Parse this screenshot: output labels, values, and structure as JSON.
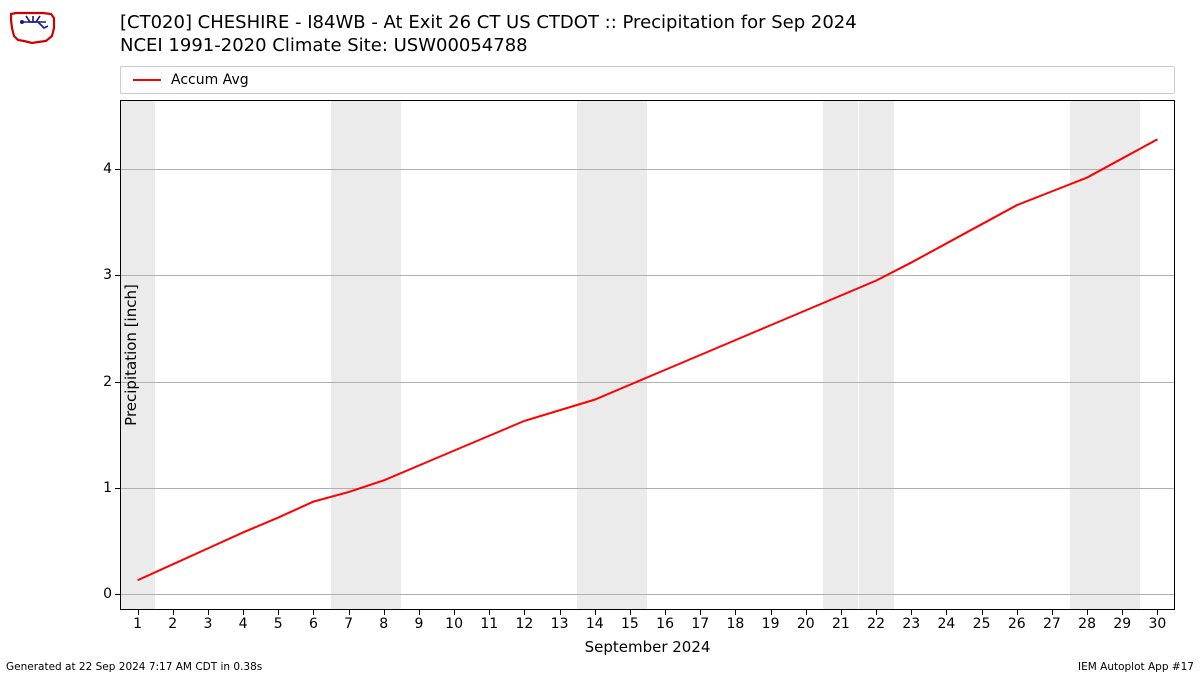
{
  "logo": {
    "name": "iem-iowa-logo",
    "stroke_primary": "#cc0000",
    "stroke_secondary": "#1a1a8a",
    "fill": "#ffffff"
  },
  "title": {
    "line1": "[CT020] CHESHIRE - I84WB - At Exit 26    CT US  CTDOT :: Precipitation for Sep 2024",
    "line2": "NCEI 1991-2020 Climate Site: USW00054788",
    "fontsize": 18,
    "color": "#000000"
  },
  "chart": {
    "type": "line",
    "background_color": "#ffffff",
    "weekend_band_color": "#ebebeb",
    "grid_color": "#b0b0b0",
    "border_color": "#000000",
    "x": {
      "label": "September 2024",
      "label_fontsize": 15,
      "ticks": [
        1,
        2,
        3,
        4,
        5,
        6,
        7,
        8,
        9,
        10,
        11,
        12,
        13,
        14,
        15,
        16,
        17,
        18,
        19,
        20,
        21,
        22,
        23,
        24,
        25,
        26,
        27,
        28,
        29,
        30
      ],
      "tick_fontsize": 14,
      "lim": [
        0.5,
        30.5
      ]
    },
    "y": {
      "label": "Precipitation [inch]",
      "label_fontsize": 15,
      "ticks": [
        0,
        1,
        2,
        3,
        4
      ],
      "tick_fontsize": 14,
      "lim": [
        -0.15,
        4.65
      ]
    },
    "weekend_days": [
      1,
      7,
      8,
      14,
      15,
      21,
      22,
      28,
      29
    ],
    "series": [
      {
        "name": "Accum Avg",
        "color": "#ff0000",
        "line_width": 2,
        "x": [
          1,
          2,
          3,
          4,
          5,
          6,
          7,
          8,
          9,
          10,
          11,
          12,
          13,
          14,
          15,
          16,
          17,
          18,
          19,
          20,
          21,
          22,
          23,
          24,
          25,
          26,
          27,
          28,
          29,
          30
        ],
        "y": [
          0.13,
          0.28,
          0.43,
          0.58,
          0.72,
          0.87,
          0.96,
          1.07,
          1.21,
          1.35,
          1.49,
          1.63,
          1.73,
          1.83,
          1.97,
          2.11,
          2.25,
          2.39,
          2.53,
          2.67,
          2.81,
          2.95,
          3.12,
          3.3,
          3.48,
          3.66,
          3.79,
          3.92,
          4.1,
          4.28
        ]
      }
    ],
    "legend": {
      "position": "top",
      "fontsize": 14,
      "border_color": "#cccccc"
    }
  },
  "footer": {
    "left": "Generated at 22 Sep 2024 7:17 AM CDT in 0.38s",
    "right": "IEM Autoplot App #17",
    "fontsize": 10.5
  }
}
